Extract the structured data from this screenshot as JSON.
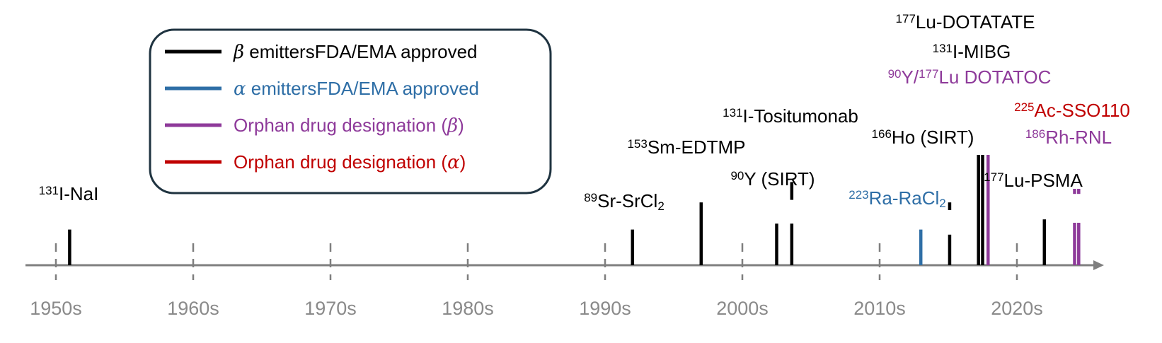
{
  "colors": {
    "beta_approved": "#000000",
    "alpha_approved": "#2e6ea6",
    "orphan_beta": "#8e3a9a",
    "orphan_alpha": "#c00000",
    "axis": "#7f7f7f",
    "legend_border": "#1f3340"
  },
  "legend": {
    "items": [
      {
        "symbol": "β",
        "text": " emittersFDA/EMA approved",
        "category": "beta_approved"
      },
      {
        "symbol": "α",
        "text": " emittersFDA/EMA approved",
        "category": "alpha_approved"
      },
      {
        "symbol": "",
        "text": "Orphan drug designation (",
        "symbol_after": "β",
        "text_after": ")",
        "category": "orphan_beta"
      },
      {
        "symbol": "",
        "text": "Orphan drug designation (",
        "symbol_after": "α",
        "text_after": ")",
        "category": "orphan_alpha"
      }
    ]
  },
  "axis": {
    "decades": [
      "1950s",
      "1960s",
      "1970s",
      "1980s",
      "1990s",
      "2000s",
      "2010s",
      "2020s"
    ],
    "year_range": [
      1950,
      2027
    ]
  },
  "events": [
    {
      "id": "i131-nai",
      "year": 1951,
      "level": 0.42,
      "category": "beta_approved",
      "label_sup": "131",
      "label": "I-NaI"
    },
    {
      "id": "sr89",
      "year": 1992,
      "level": 0.42,
      "category": "beta_approved",
      "label_sup": "89",
      "label": "Sr-SrCl",
      "label_sub": "2"
    },
    {
      "id": "sm153",
      "year": 1997,
      "level": 0.74,
      "category": "beta_approved",
      "label_sup": "153",
      "label": "Sm-EDTMP"
    },
    {
      "id": "y90-sirt-a",
      "year": 2002.5,
      "level": 0.49,
      "category": "beta_approved"
    },
    {
      "id": "y90-sirt-b",
      "year": 2003.6,
      "level": 0.49,
      "category": "beta_approved",
      "label_sup": "90",
      "label": "Y (SIRT)"
    },
    {
      "id": "i131-tositumomab",
      "year": 2003.6,
      "level_bottom": 0.77,
      "level": 0.98,
      "category": "beta_approved",
      "label_sup": "131",
      "label": "I-Tositumonab"
    },
    {
      "id": "ra223",
      "year": 2013,
      "level": 0.42,
      "category": "alpha_approved",
      "label_sup": "223",
      "label": "Ra-RaCl",
      "label_sub": "2"
    },
    {
      "id": "ho166-a",
      "year": 2015.1,
      "level": 0.36,
      "category": "beta_approved"
    },
    {
      "id": "ho166-b",
      "year": 2015.1,
      "level_bottom": 0.65,
      "level": 0.74,
      "category": "beta_approved",
      "label_sup": "166",
      "label": "Ho (SIRT)"
    },
    {
      "id": "lu177-dotatate",
      "year": 2017.2,
      "level": 1.3,
      "category": "beta_approved",
      "label_sup": "177",
      "label": "Lu-DOTATATE"
    },
    {
      "id": "i131-mibg",
      "year": 2017.5,
      "level": 1.3,
      "category": "beta_approved",
      "label_sup": "131",
      "label": "I-MIBG"
    },
    {
      "id": "y90-lu177-dotatoc",
      "year": 2017.9,
      "level": 1.3,
      "category": "orphan_beta",
      "label_sup": "90",
      "label": "Y/",
      "label_sup2": "177",
      "label2": "Lu DOTATOC"
    },
    {
      "id": "lu177-psma",
      "year": 2022,
      "level": 0.54,
      "category": "beta_approved",
      "label_sup": "177",
      "label": "Lu-PSMA"
    },
    {
      "id": "ac225-a",
      "year": 2024.2,
      "level": 0.5,
      "category": "orphan_beta"
    },
    {
      "id": "ac225-b",
      "year": 2024.5,
      "level": 0.5,
      "category": "orphan_beta"
    },
    {
      "id": "rh186-a",
      "year": 2024.2,
      "level_bottom": 0.84,
      "level": 0.9,
      "category": "orphan_beta"
    },
    {
      "id": "rh186-b",
      "year": 2024.5,
      "level_bottom": 0.84,
      "level": 0.9,
      "category": "orphan_beta",
      "label_sup": "186",
      "label": "Rh-RNL"
    },
    {
      "id": "ac225-sso110",
      "year": 2024.8,
      "label_only": true,
      "category": "orphan_alpha",
      "label_sup": "225",
      "label": "Ac-SSO110"
    }
  ]
}
